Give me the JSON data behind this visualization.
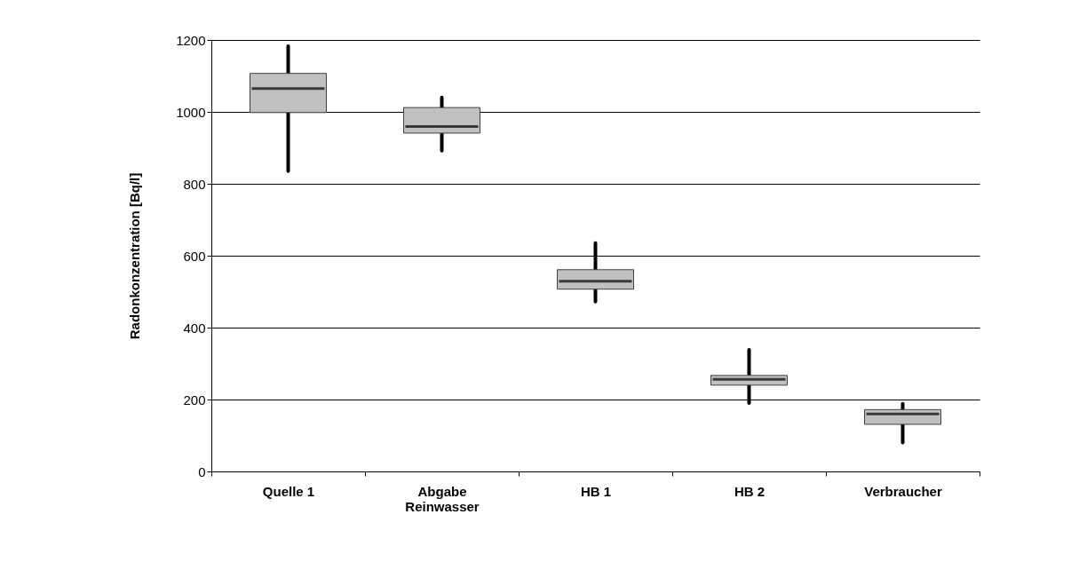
{
  "chart_data": {
    "type": "box",
    "ylabel": "Radonkonzentration [Bq/l]",
    "categories": [
      "Quelle 1",
      "Abgabe Reinwasser",
      "HB 1",
      "HB 2",
      "Verbraucher"
    ],
    "boxes": [
      {
        "low": 835,
        "q1": 998,
        "median": 1065,
        "q3": 1107,
        "high": 1183
      },
      {
        "low": 892,
        "q1": 941,
        "median": 959,
        "q3": 1012,
        "high": 1040
      },
      {
        "low": 472,
        "q1": 507,
        "median": 529,
        "q3": 561,
        "high": 635
      },
      {
        "low": 190,
        "q1": 240,
        "median": 256,
        "q3": 267,
        "high": 338
      },
      {
        "low": 80,
        "q1": 131,
        "median": 160,
        "q3": 172,
        "high": 188
      }
    ],
    "color": "#c0c0c0",
    "ylim": [
      0,
      1200
    ],
    "yticks": [
      0,
      200,
      400,
      600,
      800,
      1000,
      1200
    ],
    "grid": "y"
  }
}
